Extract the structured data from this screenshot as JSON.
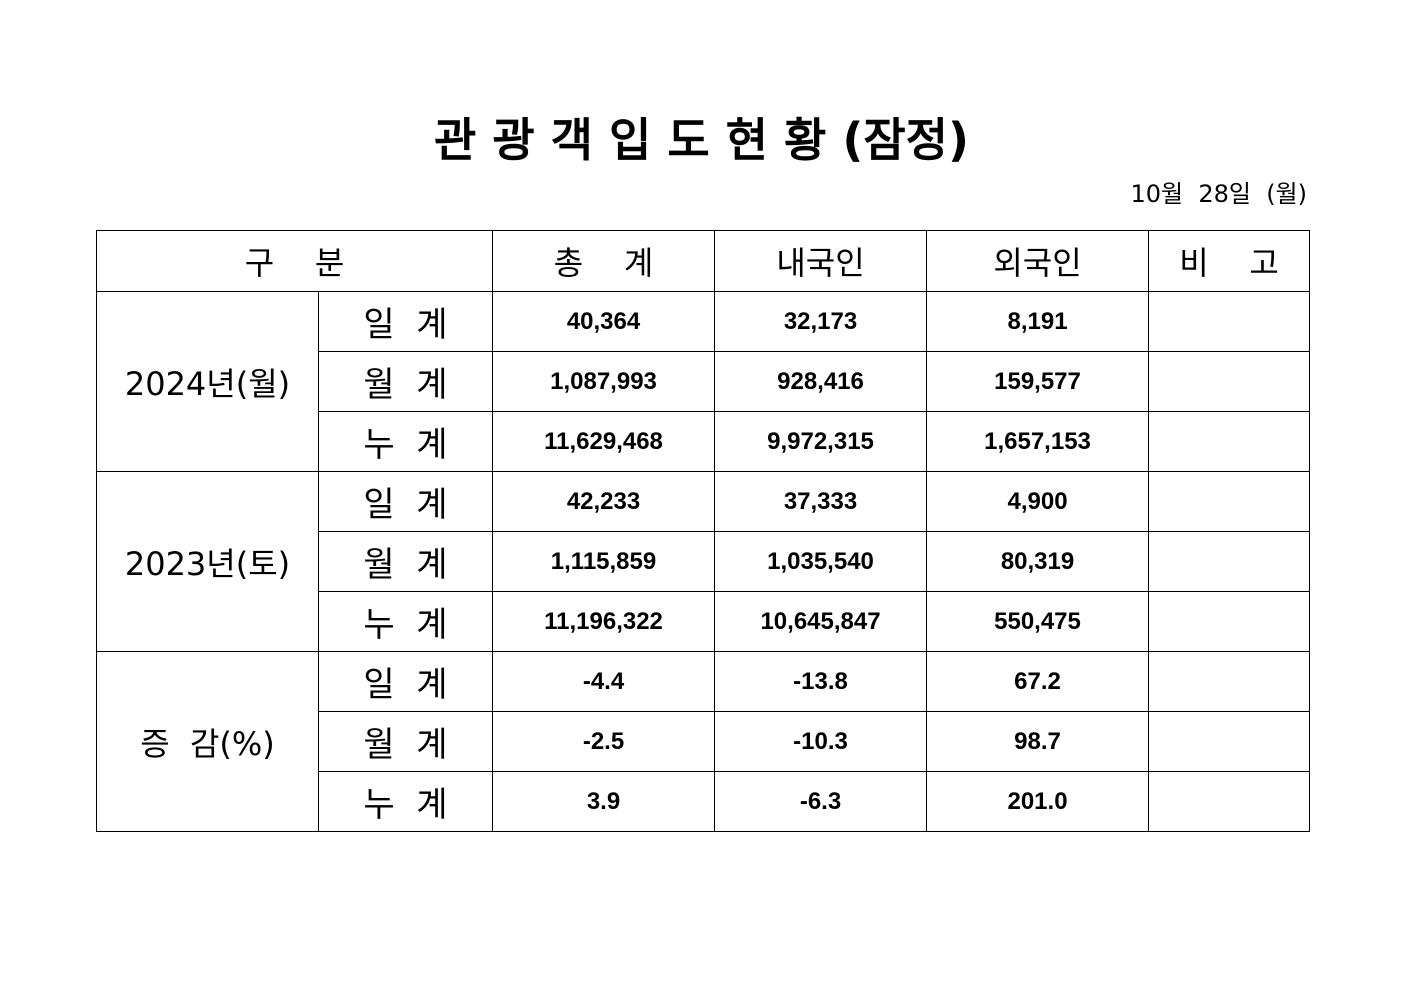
{
  "title": "관 광 객 입 도 현 황 (잠정)",
  "date": "10월  28일  (월)",
  "columns": [
    "구    분",
    "총    계",
    "내국인",
    "외국인",
    "비    고"
  ],
  "groups": [
    {
      "label": "2024년(월)",
      "rows": [
        {
          "label": "일  계",
          "total": "40,364",
          "domestic": "32,173",
          "foreign": "8,191",
          "note": ""
        },
        {
          "label": "월  계",
          "total": "1,087,993",
          "domestic": "928,416",
          "foreign": "159,577",
          "note": ""
        },
        {
          "label": "누  계",
          "total": "11,629,468",
          "domestic": "9,972,315",
          "foreign": "1,657,153",
          "note": ""
        }
      ]
    },
    {
      "label": "2023년(토)",
      "rows": [
        {
          "label": "일  계",
          "total": "42,233",
          "domestic": "37,333",
          "foreign": "4,900",
          "note": ""
        },
        {
          "label": "월  계",
          "total": "1,115,859",
          "domestic": "1,035,540",
          "foreign": "80,319",
          "note": ""
        },
        {
          "label": "누  계",
          "total": "11,196,322",
          "domestic": "10,645,847",
          "foreign": "550,475",
          "note": ""
        }
      ]
    },
    {
      "label": "증  감(%)",
      "rows": [
        {
          "label": "일  계",
          "total": "-4.4",
          "domestic": "-13.8",
          "foreign": "67.2",
          "note": ""
        },
        {
          "label": "월  계",
          "total": "-2.5",
          "domestic": "-10.3",
          "foreign": "98.7",
          "note": ""
        },
        {
          "label": "누  계",
          "total": "3.9",
          "domestic": "-6.3",
          "foreign": "201.0",
          "note": ""
        }
      ]
    }
  ]
}
